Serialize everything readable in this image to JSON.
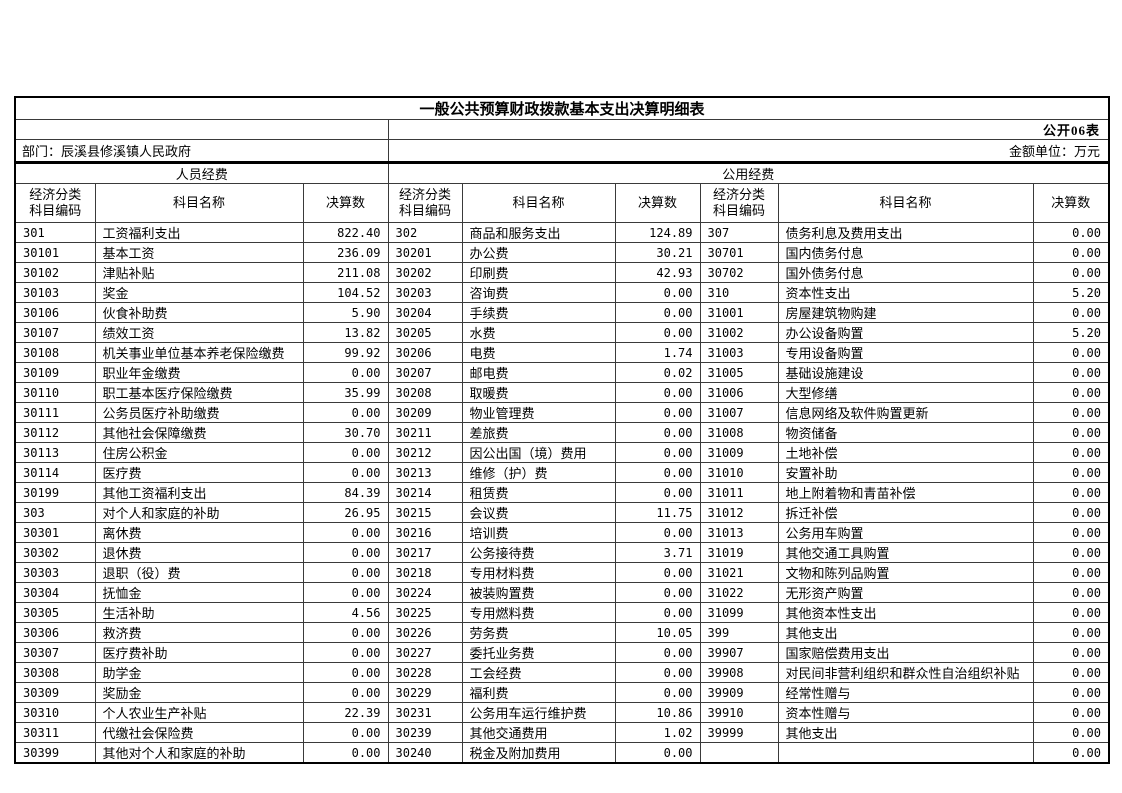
{
  "header": {
    "title": "一般公共预算财政拨款基本支出决算明细表",
    "table_no": "公开06表",
    "department": "部门：辰溪县修溪镇人民政府",
    "unit": "金额单位：万元"
  },
  "sections": {
    "left": "人员经费",
    "right": "公用经费"
  },
  "columns": {
    "code_line1": "经济分类",
    "code_line2": "科目编码",
    "name": "科目名称",
    "value": "决算数"
  },
  "groups": [
    {
      "rows": [
        [
          "301",
          "工资福利支出",
          "822.40"
        ],
        [
          "30101",
          "基本工资",
          "236.09"
        ],
        [
          "30102",
          "津贴补贴",
          "211.08"
        ],
        [
          "30103",
          "奖金",
          "104.52"
        ],
        [
          "30106",
          "伙食补助费",
          "5.90"
        ],
        [
          "30107",
          "绩效工资",
          "13.82"
        ],
        [
          "30108",
          "机关事业单位基本养老保险缴费",
          "99.92"
        ],
        [
          "30109",
          "职业年金缴费",
          "0.00"
        ],
        [
          "30110",
          "职工基本医疗保险缴费",
          "35.99"
        ],
        [
          "30111",
          "公务员医疗补助缴费",
          "0.00"
        ],
        [
          "30112",
          "其他社会保障缴费",
          "30.70"
        ],
        [
          "30113",
          "住房公积金",
          "0.00"
        ],
        [
          "30114",
          "医疗费",
          "0.00"
        ],
        [
          "30199",
          "其他工资福利支出",
          "84.39"
        ],
        [
          "303",
          "对个人和家庭的补助",
          "26.95"
        ],
        [
          "30301",
          "离休费",
          "0.00"
        ],
        [
          "30302",
          "退休费",
          "0.00"
        ],
        [
          "30303",
          "退职（役）费",
          "0.00"
        ],
        [
          "30304",
          "抚恤金",
          "0.00"
        ],
        [
          "30305",
          "生活补助",
          "4.56"
        ],
        [
          "30306",
          "救济费",
          "0.00"
        ],
        [
          "30307",
          "医疗费补助",
          "0.00"
        ],
        [
          "30308",
          "助学金",
          "0.00"
        ],
        [
          "30309",
          "奖励金",
          "0.00"
        ],
        [
          "30310",
          "个人农业生产补贴",
          "22.39"
        ],
        [
          "30311",
          "代缴社会保险费",
          "0.00"
        ],
        [
          "30399",
          "其他对个人和家庭的补助",
          "0.00"
        ]
      ]
    },
    {
      "rows": [
        [
          "302",
          "商品和服务支出",
          "124.89"
        ],
        [
          "30201",
          "办公费",
          "30.21"
        ],
        [
          "30202",
          "印刷费",
          "42.93"
        ],
        [
          "30203",
          "咨询费",
          "0.00"
        ],
        [
          "30204",
          "手续费",
          "0.00"
        ],
        [
          "30205",
          "水费",
          "0.00"
        ],
        [
          "30206",
          "电费",
          "1.74"
        ],
        [
          "30207",
          "邮电费",
          "0.02"
        ],
        [
          "30208",
          "取暖费",
          "0.00"
        ],
        [
          "30209",
          "物业管理费",
          "0.00"
        ],
        [
          "30211",
          "差旅费",
          "0.00"
        ],
        [
          "30212",
          "因公出国（境）费用",
          "0.00"
        ],
        [
          "30213",
          "维修（护）费",
          "0.00"
        ],
        [
          "30214",
          "租赁费",
          "0.00"
        ],
        [
          "30215",
          "会议费",
          "11.75"
        ],
        [
          "30216",
          "培训费",
          "0.00"
        ],
        [
          "30217",
          "公务接待费",
          "3.71"
        ],
        [
          "30218",
          "专用材料费",
          "0.00"
        ],
        [
          "30224",
          "被装购置费",
          "0.00"
        ],
        [
          "30225",
          "专用燃料费",
          "0.00"
        ],
        [
          "30226",
          "劳务费",
          "10.05"
        ],
        [
          "30227",
          "委托业务费",
          "0.00"
        ],
        [
          "30228",
          "工会经费",
          "0.00"
        ],
        [
          "30229",
          "福利费",
          "0.00"
        ],
        [
          "30231",
          "公务用车运行维护费",
          "10.86"
        ],
        [
          "30239",
          "其他交通费用",
          "1.02"
        ],
        [
          "30240",
          "税金及附加费用",
          "0.00"
        ]
      ]
    },
    {
      "rows": [
        [
          "307",
          "债务利息及费用支出",
          "0.00"
        ],
        [
          "30701",
          "国内债务付息",
          "0.00"
        ],
        [
          "30702",
          "国外债务付息",
          "0.00"
        ],
        [
          "310",
          "资本性支出",
          "5.20"
        ],
        [
          "31001",
          "房屋建筑物购建",
          "0.00"
        ],
        [
          "31002",
          "办公设备购置",
          "5.20"
        ],
        [
          "31003",
          "专用设备购置",
          "0.00"
        ],
        [
          "31005",
          "基础设施建设",
          "0.00"
        ],
        [
          "31006",
          "大型修缮",
          "0.00"
        ],
        [
          "31007",
          "信息网络及软件购置更新",
          "0.00"
        ],
        [
          "31008",
          "物资储备",
          "0.00"
        ],
        [
          "31009",
          "土地补偿",
          "0.00"
        ],
        [
          "31010",
          "安置补助",
          "0.00"
        ],
        [
          "31011",
          "地上附着物和青苗补偿",
          "0.00"
        ],
        [
          "31012",
          "拆迁补偿",
          "0.00"
        ],
        [
          "31013",
          "公务用车购置",
          "0.00"
        ],
        [
          "31019",
          "其他交通工具购置",
          "0.00"
        ],
        [
          "31021",
          "文物和陈列品购置",
          "0.00"
        ],
        [
          "31022",
          "无形资产购置",
          "0.00"
        ],
        [
          "31099",
          "其他资本性支出",
          "0.00"
        ],
        [
          "399",
          "其他支出",
          "0.00"
        ],
        [
          "39907",
          "国家赔偿费用支出",
          "0.00"
        ],
        [
          "39908",
          "对民间非营利组织和群众性自治组织补贴",
          "0.00"
        ],
        [
          "39909",
          "经常性赠与",
          "0.00"
        ],
        [
          "39910",
          "资本性赠与",
          "0.00"
        ],
        [
          "39999",
          "其他支出",
          "0.00"
        ],
        [
          "",
          "",
          "0.00"
        ]
      ]
    }
  ]
}
